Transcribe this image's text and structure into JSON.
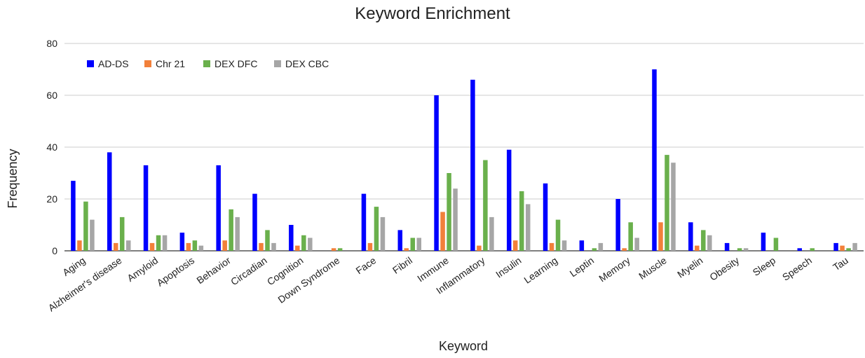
{
  "chart_data": {
    "type": "bar",
    "title": "Keyword Enrichment",
    "xlabel": "Keyword",
    "ylabel": "Frequency",
    "ylim": [
      0,
      80
    ],
    "yticks": [
      0,
      20,
      40,
      60,
      80
    ],
    "grid": true,
    "legend_position": "top-left",
    "categories": [
      "Aging",
      "Alzheimer's disease",
      "Amyloid",
      "Apoptosis",
      "Behavior",
      "Circadian",
      "Cognition",
      "Down Syndrome",
      "Face",
      "Fibril",
      "Immune",
      "Inflammatory",
      "Insulin",
      "Learning",
      "Leptin",
      "Memory",
      "Muscle",
      "Myelin",
      "Obesity",
      "Sleep",
      "Speech",
      "Tau"
    ],
    "series": [
      {
        "name": "AD-DS",
        "color": "#0000ff",
        "values": [
          27,
          38,
          33,
          7,
          33,
          22,
          10,
          0,
          22,
          8,
          60,
          66,
          39,
          26,
          4,
          20,
          70,
          11,
          3,
          7,
          1,
          3
        ]
      },
      {
        "name": "Chr 21",
        "color": "#f2803a",
        "values": [
          4,
          3,
          3,
          3,
          4,
          3,
          2,
          1,
          3,
          1,
          15,
          2,
          4,
          3,
          0,
          1,
          11,
          2,
          0,
          0,
          0,
          2
        ]
      },
      {
        "name": "DEX DFC",
        "color": "#6ab04c",
        "values": [
          19,
          13,
          6,
          4,
          16,
          8,
          6,
          1,
          17,
          5,
          30,
          35,
          23,
          12,
          1,
          11,
          37,
          8,
          1,
          5,
          1,
          1
        ]
      },
      {
        "name": "DEX CBC",
        "color": "#a6a6a6",
        "values": [
          12,
          4,
          6,
          2,
          13,
          3,
          5,
          0,
          13,
          5,
          24,
          13,
          18,
          4,
          3,
          5,
          34,
          6,
          1,
          0,
          0,
          3
        ]
      }
    ]
  }
}
